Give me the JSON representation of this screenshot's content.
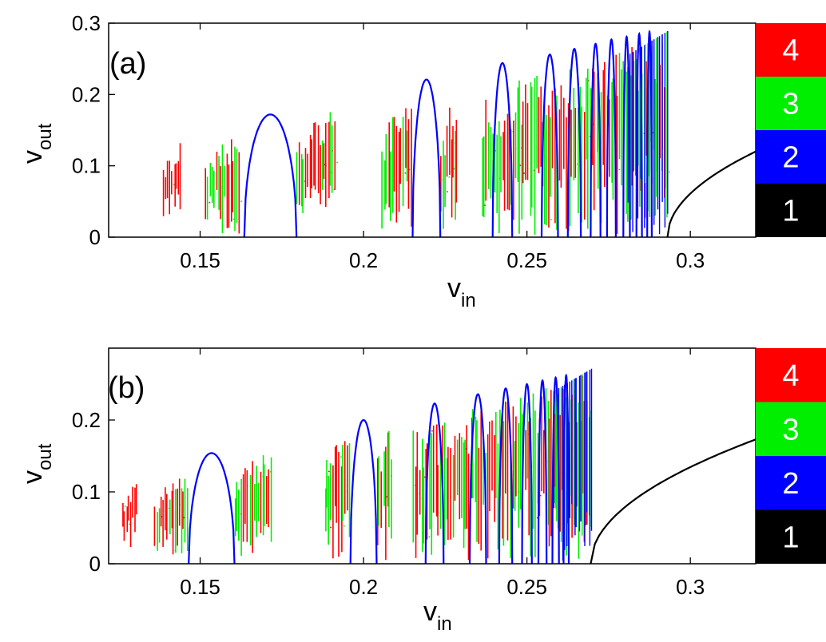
{
  "figure": {
    "panels": [
      {
        "label": "(a)"
      },
      {
        "label": "(b)"
      }
    ],
    "colorbar_labels": [
      "1",
      "2",
      "3",
      "4"
    ],
    "colors": {
      "period1": "#000000",
      "period2": "#0000ff",
      "period3": "#00ee00",
      "period4": "#ff0000"
    }
  },
  "chart_data": [
    {
      "type": "scatter",
      "title": "(a)",
      "xlabel": "v",
      "xlabel_sub": "in",
      "ylabel": "v",
      "ylabel_sub": "out",
      "xlim": [
        0.122,
        0.32
      ],
      "ylim": [
        0,
        0.3
      ],
      "xticks": [
        0.15,
        0.2,
        0.25,
        0.3
      ],
      "xtick_labels": [
        "0.15",
        "0.2",
        "0.25",
        "0.3"
      ],
      "yticks": [
        0,
        0.1,
        0.2,
        0.3
      ],
      "ytick_labels": [
        "0",
        "0.1",
        "0.2",
        "0.3"
      ],
      "period1_branch": {
        "x0": 0.293,
        "x1": 0.32,
        "y1": 0.12
      },
      "period2_windows": [
        {
          "x0": 0.1635,
          "x1": 0.1795,
          "peak": 0.172
        },
        {
          "x0": 0.215,
          "x1": 0.2235,
          "peak": 0.221
        },
        {
          "x0": 0.2395,
          "x1": 0.2455,
          "peak": 0.244
        },
        {
          "x0": 0.2545,
          "x1": 0.2595,
          "peak": 0.256
        },
        {
          "x0": 0.2625,
          "x1": 0.2665,
          "peak": 0.264
        },
        {
          "x0": 0.2695,
          "x1": 0.2725,
          "peak": 0.271
        },
        {
          "x0": 0.2745,
          "x1": 0.2772,
          "peak": 0.277
        },
        {
          "x0": 0.2795,
          "x1": 0.2815,
          "peak": 0.281
        },
        {
          "x0": 0.2835,
          "x1": 0.2852,
          "peak": 0.285
        },
        {
          "x0": 0.2868,
          "x1": 0.2882,
          "peak": 0.288
        }
      ],
      "chaotic_bands": [
        {
          "x0": 0.1385,
          "x1": 0.1445,
          "ymin": 0.025,
          "ymax": 0.14,
          "mix": 0.0
        },
        {
          "x0": 0.1515,
          "x1": 0.1625,
          "ymin": 0.005,
          "ymax": 0.157,
          "mix": 0.5
        },
        {
          "x0": 0.1795,
          "x1": 0.1915,
          "ymin": 0.025,
          "ymax": 0.19,
          "mix": 0.4
        },
        {
          "x0": 0.2055,
          "x1": 0.215,
          "ymin": 0.01,
          "ymax": 0.21,
          "mix": 0.4
        },
        {
          "x0": 0.2235,
          "x1": 0.229,
          "ymin": 0.005,
          "ymax": 0.215,
          "mix": 0.5
        },
        {
          "x0": 0.236,
          "x1": 0.2935,
          "ymin": 0.003,
          "ymax": 0.29,
          "mix": 0.5
        }
      ]
    },
    {
      "type": "scatter",
      "title": "(b)",
      "xlabel": "v",
      "xlabel_sub": "in",
      "ylabel": "v",
      "ylabel_sub": "out",
      "xlim": [
        0.122,
        0.32
      ],
      "ylim": [
        0,
        0.3
      ],
      "xticks": [
        0.15,
        0.2,
        0.25,
        0.3
      ],
      "xtick_labels": [
        "0.15",
        "0.2",
        "0.25",
        "0.3"
      ],
      "yticks": [
        0,
        0.1,
        0.2
      ],
      "ytick_labels": [
        "0",
        "0.1",
        "0.2"
      ],
      "period1_branch": {
        "x0": 0.2695,
        "x1": 0.32,
        "y1": 0.173
      },
      "period2_windows": [
        {
          "x0": 0.1465,
          "x1": 0.1605,
          "peak": 0.154
        },
        {
          "x0": 0.196,
          "x1": 0.204,
          "peak": 0.2
        },
        {
          "x0": 0.219,
          "x1": 0.2245,
          "peak": 0.223
        },
        {
          "x0": 0.2325,
          "x1": 0.2375,
          "peak": 0.236
        },
        {
          "x0": 0.2415,
          "x1": 0.2455,
          "peak": 0.244
        },
        {
          "x0": 0.2485,
          "x1": 0.2515,
          "peak": 0.25
        },
        {
          "x0": 0.2535,
          "x1": 0.256,
          "peak": 0.255
        },
        {
          "x0": 0.2578,
          "x1": 0.2598,
          "peak": 0.259
        },
        {
          "x0": 0.2612,
          "x1": 0.2628,
          "peak": 0.262
        }
      ],
      "chaotic_bands": [
        {
          "x0": 0.126,
          "x1": 0.131,
          "ymin": 0.02,
          "ymax": 0.125,
          "mix": 0.0
        },
        {
          "x0": 0.136,
          "x1": 0.1465,
          "ymin": 0.01,
          "ymax": 0.14,
          "mix": 0.5
        },
        {
          "x0": 0.1605,
          "x1": 0.172,
          "ymin": 0.01,
          "ymax": 0.17,
          "mix": 0.5
        },
        {
          "x0": 0.188,
          "x1": 0.196,
          "ymin": 0.0,
          "ymax": 0.2,
          "mix": 0.4
        },
        {
          "x0": 0.204,
          "x1": 0.209,
          "ymin": 0.005,
          "ymax": 0.205,
          "mix": 0.4
        },
        {
          "x0": 0.215,
          "x1": 0.27,
          "ymin": 0.003,
          "ymax": 0.272,
          "mix": 0.5
        }
      ]
    }
  ]
}
